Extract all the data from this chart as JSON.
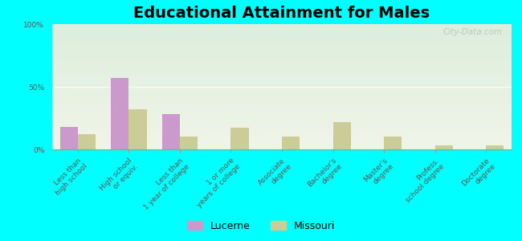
{
  "title": "Educational Attainment for Males",
  "categories": [
    "Less than\nhigh school",
    "High school\nor equiv.",
    "Less than\n1 year of college",
    "1 or more\nyears of college",
    "Associate\ndegree",
    "Bachelor's\ndegree",
    "Master's\ndegree",
    "Profess.\nschool degree",
    "Doctorate\ndegree"
  ],
  "lucerne": [
    18,
    57,
    28,
    0,
    0,
    0,
    0,
    0,
    0
  ],
  "missouri": [
    12,
    32,
    10,
    17,
    10,
    22,
    10,
    3,
    3
  ],
  "lucerne_color": "#cc99cc",
  "missouri_color": "#cccc99",
  "bg_top_color": "#ddeedd",
  "bg_bottom_color": "#f0f5e8",
  "ylim": [
    0,
    100
  ],
  "yticks": [
    0,
    50,
    100
  ],
  "ytick_labels": [
    "0%",
    "50%",
    "100%"
  ],
  "bar_width": 0.35,
  "title_fontsize": 14,
  "tick_fontsize": 6.5,
  "legend_fontsize": 9,
  "watermark": "City-Data.com",
  "figure_bg": "#00ffff"
}
